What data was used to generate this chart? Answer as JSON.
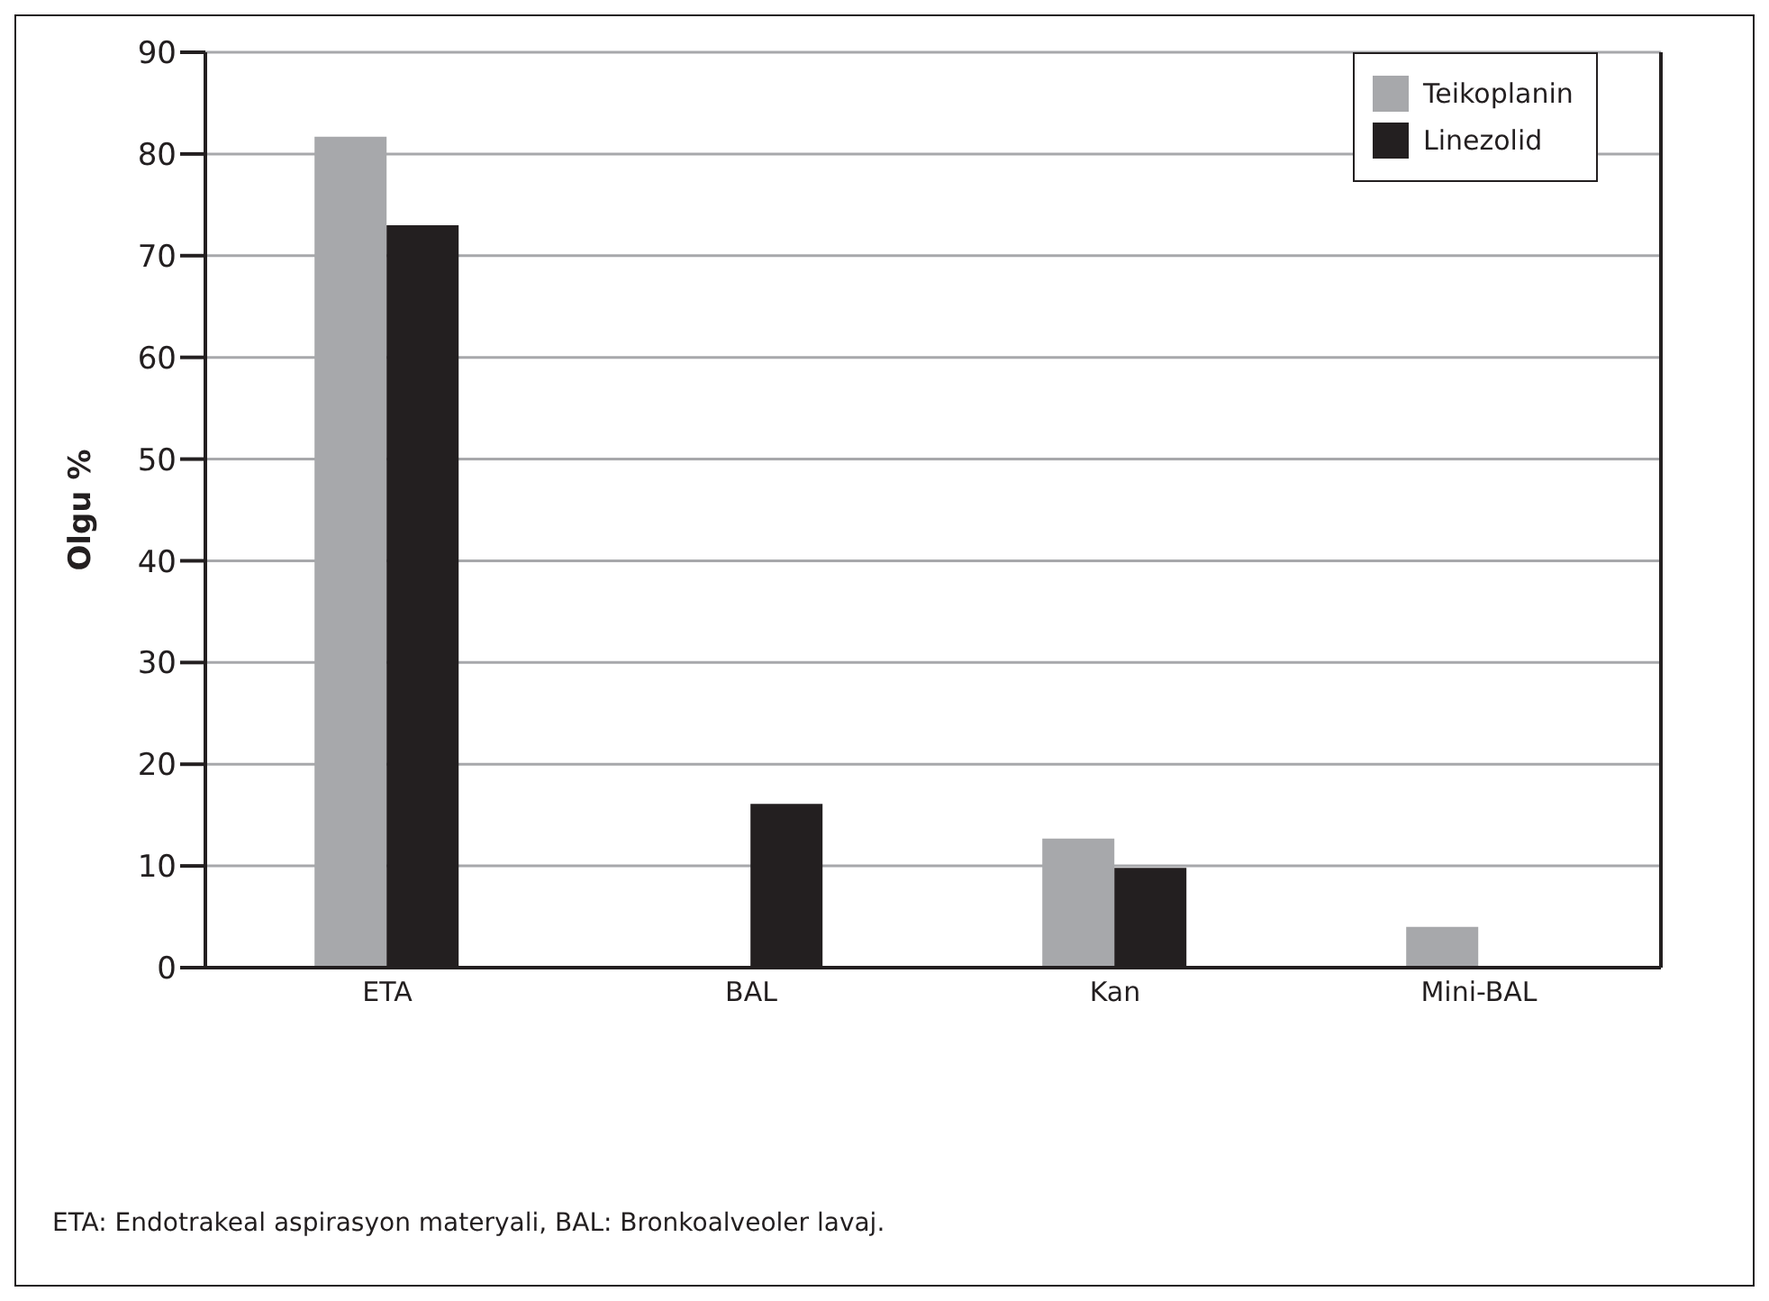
{
  "chart_data": {
    "type": "bar",
    "ylabel": "Olgu %",
    "categories": [
      "ETA",
      "BAL",
      "Kan",
      "Mini-BAL"
    ],
    "series": [
      {
        "name": "Teikoplanin",
        "color": "#a7a8ab",
        "values": [
          81.7,
          null,
          12.7,
          4
        ]
      },
      {
        "name": "Linezolid",
        "color": "#231f20",
        "values": [
          73,
          16.1,
          9.8,
          null
        ]
      }
    ],
    "ylim": [
      0,
      90
    ],
    "yticks": [
      0,
      10,
      20,
      30,
      40,
      50,
      60,
      70,
      80,
      90
    ],
    "grid": "y",
    "legend": "top right",
    "annotations": [
      "ETA: Endotrakeal aspirasyon materyali, BAL: Bronkoalveoler lavaj."
    ]
  }
}
